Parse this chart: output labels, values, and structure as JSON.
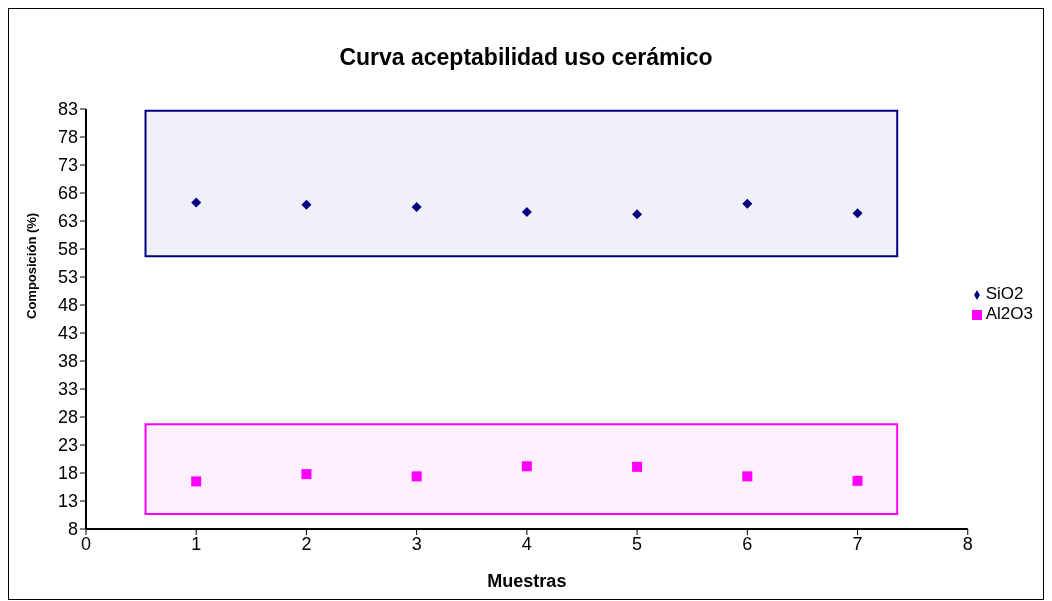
{
  "chart_data": {
    "type": "scatter",
    "title": "Curva aceptabilidad uso cerámico",
    "xlabel": "Muestras",
    "ylabel": "Composición (%)",
    "x": [
      1,
      2,
      3,
      4,
      5,
      6,
      7
    ],
    "series": [
      {
        "name": "SiO2",
        "color": "#000080",
        "marker": "diamond",
        "values": [
          66.3,
          65.9,
          65.5,
          64.6,
          64.2,
          66.1,
          64.4
        ]
      },
      {
        "name": "Al2O3",
        "color": "#ff00ff",
        "marker": "square",
        "values": [
          16.5,
          17.8,
          17.4,
          19.2,
          19.1,
          17.4,
          16.6
        ]
      }
    ],
    "bands": [
      {
        "axis": "y",
        "from": 56.7,
        "to": 82.7,
        "color": "#000080"
      },
      {
        "axis": "y",
        "from": 10.7,
        "to": 26.7,
        "color": "#ff00ff"
      }
    ],
    "xlim": [
      0,
      8
    ],
    "xticks": [
      0,
      1,
      2,
      3,
      4,
      5,
      6,
      7,
      8
    ],
    "ylim": [
      8,
      83
    ],
    "yticks": [
      8,
      13,
      18,
      23,
      28,
      33,
      38,
      43,
      48,
      53,
      58,
      63,
      68,
      73,
      78,
      83
    ],
    "grid": false,
    "legend": "right"
  }
}
